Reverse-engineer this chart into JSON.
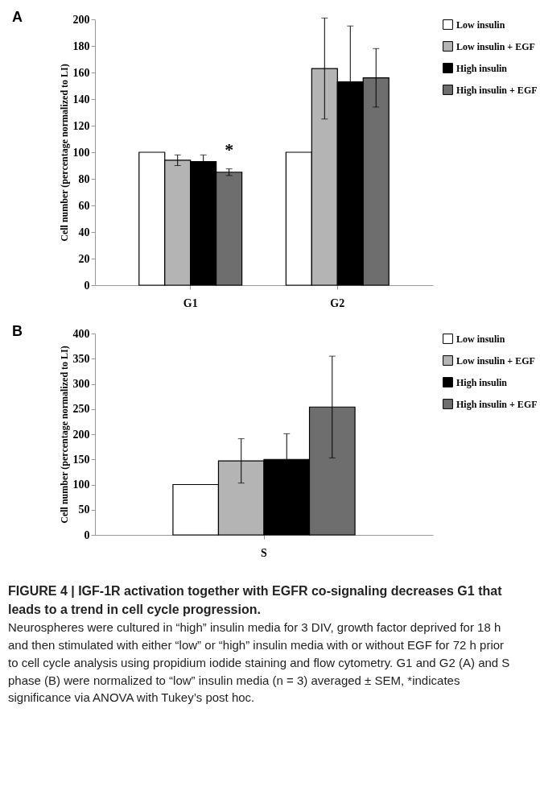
{
  "chart_data": [
    {
      "type": "bar",
      "title": "A",
      "categories": [
        "G1",
        "G2"
      ],
      "ylabel": "Cell number (percentage normalized to LI)",
      "ylim": [
        0,
        200
      ],
      "yticks": [
        0,
        20,
        40,
        60,
        80,
        100,
        120,
        140,
        160,
        180,
        200
      ],
      "legend": "right",
      "grid": false,
      "series": [
        {
          "name": "Low insulin",
          "color": "#ffffff",
          "values": [
            100,
            100
          ],
          "errors": [
            null,
            null
          ]
        },
        {
          "name": "Low insulin + EGF",
          "color": "#b4b4b4",
          "values": [
            94,
            163
          ],
          "errors": [
            4,
            38
          ]
        },
        {
          "name": "High insulin",
          "color": "#000000",
          "values": [
            93,
            153
          ],
          "errors": [
            5,
            42
          ]
        },
        {
          "name": "High insulin + EGF",
          "color": "#6e6e6e",
          "values": [
            85,
            156
          ],
          "errors": [
            2.5,
            22
          ]
        }
      ],
      "annotations": [
        {
          "text": "*",
          "x": "G1",
          "y": 92
        }
      ]
    },
    {
      "type": "bar",
      "title": "B",
      "categories": [
        "S"
      ],
      "ylabel": "Cell number (percentage normalized to LI)",
      "ylim": [
        0,
        400
      ],
      "yticks": [
        0,
        50,
        100,
        150,
        200,
        250,
        300,
        350,
        400
      ],
      "legend": "right",
      "grid": false,
      "series": [
        {
          "name": "Low insulin",
          "color": "#ffffff",
          "values": [
            100
          ],
          "errors": [
            null
          ]
        },
        {
          "name": "Low insulin + EGF",
          "color": "#b4b4b4",
          "values": [
            147
          ],
          "errors": [
            44
          ]
        },
        {
          "name": "High insulin",
          "color": "#000000",
          "values": [
            150
          ],
          "errors": [
            51
          ]
        },
        {
          "name": "High insulin + EGF",
          "color": "#6e6e6e",
          "values": [
            254
          ],
          "errors": [
            101
          ]
        }
      ],
      "annotations": [
        "FIGURE 4 | IGF-1R activation together with EGFR co-signaling decreases G1 that leads to a trend in cell cycle progression.",
        "Neurospheres were cultured in “high” insulin media for 3 DIV, growth factor deprived for 18 h and then stimulated with either “low” or “high” insulin media with or without EGF for 72 h prior to cell cycle analysis using propidium iodide staining and flow cytometry. G1 and G2 (A) and S phase (B) were normalized to “low” insulin media (n = 3) averaged ± SEM, *indicates significance via ANOVA with Tukey’s post hoc."
      ]
    }
  ]
}
